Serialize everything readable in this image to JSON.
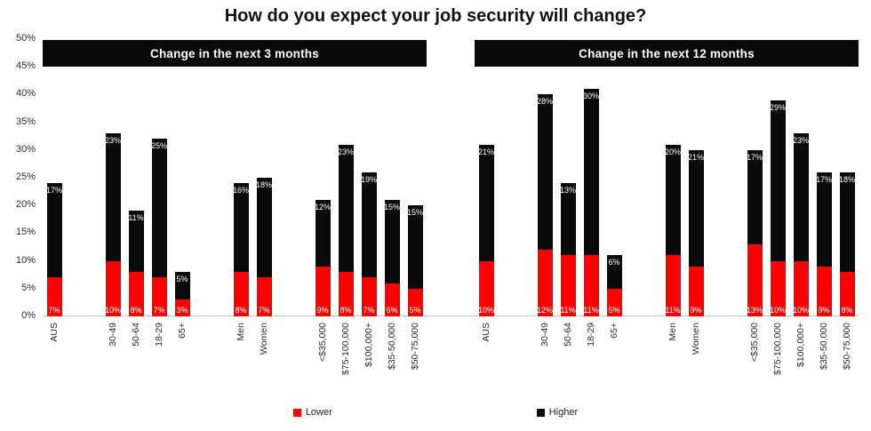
{
  "chart_data": {
    "type": "bar",
    "stacked": true,
    "title": "How do you expect your job security will change?",
    "ylim": [
      0,
      50
    ],
    "ytick_step": 5,
    "ytick_suffix": "%",
    "grid": false,
    "legend_position": "bottom",
    "series": [
      "Lower",
      "Higher"
    ],
    "colors": {
      "lower": "#ff0000",
      "higher": "#0a0a0a"
    },
    "panels": [
      {
        "header": "Change in the next 3 months",
        "groups": [
          {
            "bars": [
              {
                "label": "AUS",
                "lower": 7,
                "higher": 17
              }
            ]
          },
          {
            "bars": [
              {
                "label": "30-49",
                "lower": 10,
                "higher": 23
              },
              {
                "label": "50-64",
                "lower": 8,
                "higher": 11
              },
              {
                "label": "18-29",
                "lower": 7,
                "higher": 25
              },
              {
                "label": "65+",
                "lower": 3,
                "higher": 5
              }
            ]
          },
          {
            "bars": [
              {
                "label": "Men",
                "lower": 8,
                "higher": 16
              },
              {
                "label": "Women",
                "lower": 7,
                "higher": 18
              }
            ]
          },
          {
            "bars": [
              {
                "label": "<$35,000",
                "lower": 9,
                "higher": 12
              },
              {
                "label": "$75-100,000",
                "lower": 8,
                "higher": 23
              },
              {
                "label": "$100,000+",
                "lower": 7,
                "higher": 19
              },
              {
                "label": "$35-50,000",
                "lower": 6,
                "higher": 15
              },
              {
                "label": "$50-75,000",
                "lower": 5,
                "higher": 15
              }
            ]
          }
        ]
      },
      {
        "header": "Change in the next 12 months",
        "groups": [
          {
            "bars": [
              {
                "label": "AUS",
                "lower": 10,
                "higher": 21
              }
            ]
          },
          {
            "bars": [
              {
                "label": "30-49",
                "lower": 12,
                "higher": 28
              },
              {
                "label": "50-64",
                "lower": 11,
                "higher": 13
              },
              {
                "label": "18-29",
                "lower": 11,
                "higher": 30
              },
              {
                "label": "65+",
                "lower": 5,
                "higher": 6
              }
            ]
          },
          {
            "bars": [
              {
                "label": "Men",
                "lower": 11,
                "higher": 20
              },
              {
                "label": "Women",
                "lower": 9,
                "higher": 21
              }
            ]
          },
          {
            "bars": [
              {
                "label": "<$35,000",
                "lower": 13,
                "higher": 17
              },
              {
                "label": "$75-100,000",
                "lower": 10,
                "higher": 29
              },
              {
                "label": "$100,000+",
                "lower": 10,
                "higher": 23
              },
              {
                "label": "$35-50,000",
                "lower": 9,
                "higher": 17
              },
              {
                "label": "$50-75,000",
                "lower": 8,
                "higher": 18
              }
            ]
          }
        ]
      }
    ]
  },
  "legend": {
    "items": [
      {
        "label": "Lower",
        "color": "#ff0000"
      },
      {
        "label": "Higher",
        "color": "#0a0a0a"
      }
    ]
  }
}
